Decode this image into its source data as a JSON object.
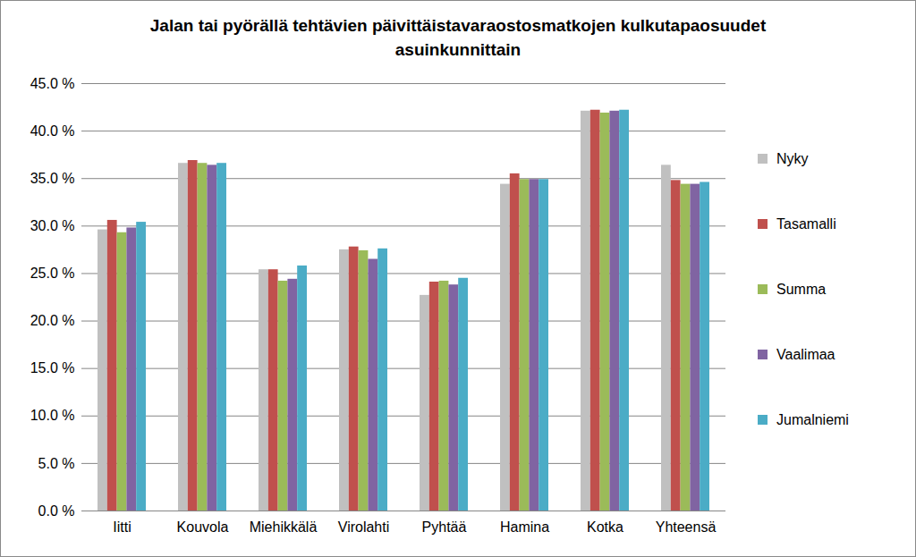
{
  "chart_data": {
    "type": "bar",
    "title": "Jalan tai pyörällä tehtävien päivittäistavaraostosmatkojen kulkutapaosuudet asuinkunnittain",
    "categories": [
      "Iitti",
      "Kouvola",
      "Miehikkälä",
      "Virolahti",
      "Pyhtää",
      "Hamina",
      "Kotka",
      "Yhteensä"
    ],
    "series": [
      {
        "name": "Nyky",
        "color": "#c0c0c0",
        "values": [
          29.6,
          36.6,
          25.4,
          27.5,
          22.7,
          34.4,
          42.1,
          36.4
        ]
      },
      {
        "name": "Tasamalli",
        "color": "#c0504d",
        "values": [
          30.6,
          36.9,
          25.4,
          27.8,
          24.1,
          35.5,
          42.2,
          34.8
        ]
      },
      {
        "name": "Summa",
        "color": "#9bbb59",
        "values": [
          29.3,
          36.6,
          24.2,
          27.4,
          24.2,
          34.9,
          41.9,
          34.4
        ]
      },
      {
        "name": "Vaalimaa",
        "color": "#8064a2",
        "values": [
          29.8,
          36.4,
          24.4,
          26.5,
          23.8,
          34.9,
          42.1,
          34.4
        ]
      },
      {
        "name": "Jumalniemi",
        "color": "#4bacc6",
        "values": [
          30.4,
          36.6,
          25.8,
          27.6,
          24.5,
          34.9,
          42.2,
          34.6
        ]
      }
    ],
    "ylim": [
      0,
      45
    ],
    "yticks": [
      {
        "value": 0,
        "label": "0.0 %"
      },
      {
        "value": 5,
        "label": "5.0 %"
      },
      {
        "value": 10,
        "label": "10.0 %"
      },
      {
        "value": 15,
        "label": "15.0 %"
      },
      {
        "value": 20,
        "label": "20.0 %"
      },
      {
        "value": 25,
        "label": "25.0 %"
      },
      {
        "value": 30,
        "label": "30.0 %"
      },
      {
        "value": 35,
        "label": "35.0 %"
      },
      {
        "value": 40,
        "label": "40.0 %"
      },
      {
        "value": 45,
        "label": "45.0 %"
      }
    ],
    "grid": true,
    "legend": "right"
  }
}
